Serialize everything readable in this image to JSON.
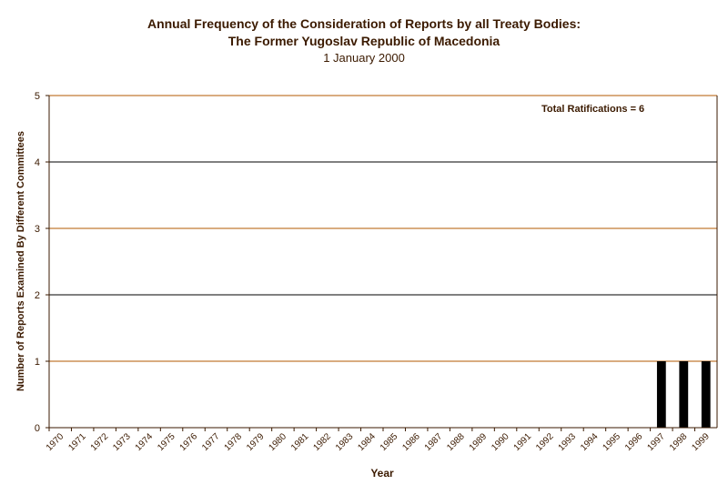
{
  "chart_data": {
    "type": "bar",
    "title": "Annual Frequency of the Consideration of Reports by all Treaty Bodies:",
    "subtitle": "The Former Yugoslav Republic of Macedonia",
    "date": "1 January 2000",
    "xlabel": "Year",
    "ylabel": "Number of Reports Examined By Different Committees",
    "annotation": "Total Ratifications = 6",
    "ylim": [
      0,
      5
    ],
    "yticks": [
      "0",
      "1",
      "2",
      "3",
      "4",
      "5"
    ],
    "grid": true,
    "categories": [
      "1970",
      "1971",
      "1972",
      "1973",
      "1974",
      "1975",
      "1976",
      "1977",
      "1978",
      "1979",
      "1980",
      "1981",
      "1982",
      "1983",
      "1984",
      "1985",
      "1986",
      "1987",
      "1988",
      "1989",
      "1990",
      "1991",
      "1992",
      "1993",
      "1994",
      "1995",
      "1996",
      "1997",
      "1998",
      "1999"
    ],
    "values": [
      0,
      0,
      0,
      0,
      0,
      0,
      0,
      0,
      0,
      0,
      0,
      0,
      0,
      0,
      0,
      0,
      0,
      0,
      0,
      0,
      0,
      0,
      0,
      0,
      0,
      0,
      0,
      1,
      1,
      1
    ],
    "colors": {
      "bar": "#000000",
      "axis": "#3b1a00",
      "grid_odd": "#b35900",
      "grid_even": "#000000"
    }
  }
}
